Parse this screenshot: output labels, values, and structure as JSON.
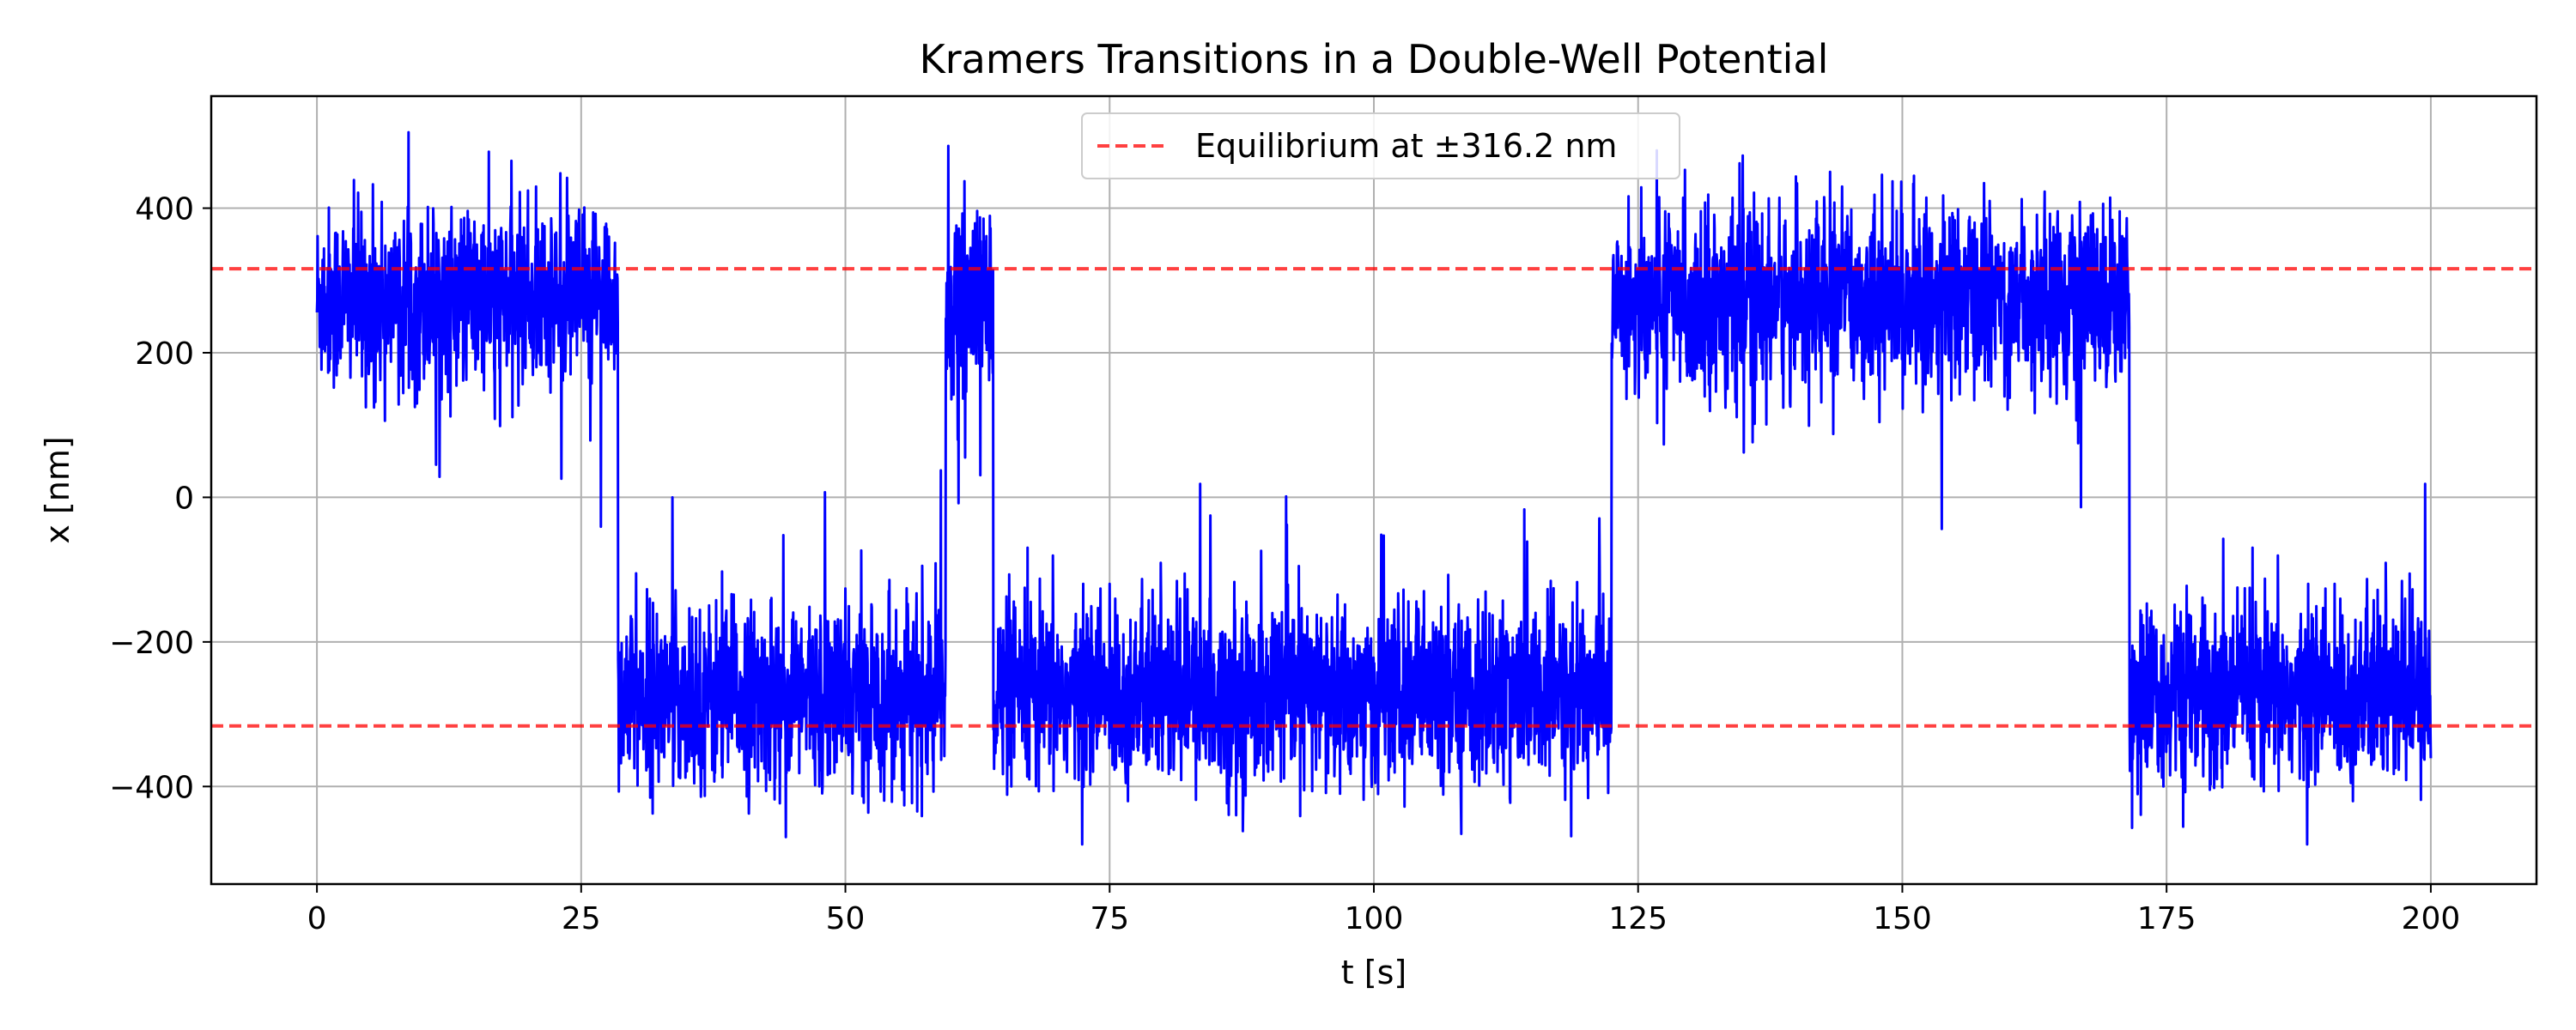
{
  "chart_data": {
    "type": "line",
    "title": "Kramers Transitions in a Double-Well Potential",
    "xlabel": "t [s]",
    "ylabel": "x [nm]",
    "xlim": [
      -10,
      210
    ],
    "ylim": [
      -535,
      555
    ],
    "xticks": [
      0,
      25,
      50,
      75,
      100,
      125,
      150,
      175,
      200
    ],
    "yticks": [
      -400,
      -200,
      0,
      200,
      400
    ],
    "x_tick_labels": [
      "0",
      "25",
      "50",
      "75",
      "100",
      "125",
      "150",
      "175",
      "200"
    ],
    "y_tick_labels": [
      "−400",
      "−200",
      "0",
      "200",
      "400"
    ],
    "grid": true,
    "legend_position": "top-center",
    "series": [
      {
        "kind": "trajectory",
        "color": "#0000ff",
        "x_range": [
          0,
          200
        ],
        "dwell_segments": [
          {
            "t_start": 0.0,
            "t_end": 28.5,
            "state_nm": 316.2
          },
          {
            "t_start": 28.5,
            "t_end": 59.5,
            "state_nm": -316.2
          },
          {
            "t_start": 59.5,
            "t_end": 64.0,
            "state_nm": 316.2
          },
          {
            "t_start": 64.0,
            "t_end": 122.5,
            "state_nm": -316.2
          },
          {
            "t_start": 122.5,
            "t_end": 171.5,
            "state_nm": 316.2
          },
          {
            "t_start": 171.5,
            "t_end": 200.0,
            "state_nm": -316.2
          }
        ],
        "band_extent_nm": [
          -480,
          505
        ]
      },
      {
        "name": "Equilibrium at ±316.2 nm",
        "kind": "hline",
        "color": "#ff0000",
        "style": "dashed",
        "y": [
          316.2,
          -316.2
        ]
      }
    ]
  }
}
